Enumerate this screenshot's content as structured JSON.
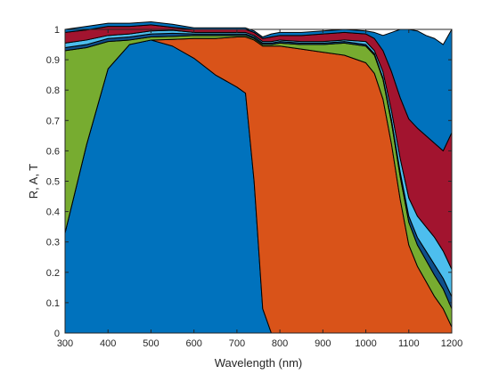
{
  "chart_data": {
    "type": "area",
    "stacked": true,
    "title": "",
    "xlabel": "Wavelength (nm)",
    "ylabel": "R, A, T",
    "xlim": [
      300,
      1200
    ],
    "ylim": [
      0,
      1
    ],
    "xticks": [
      300,
      400,
      500,
      600,
      700,
      800,
      900,
      1000,
      1100,
      1200
    ],
    "yticks": [
      0,
      0.1,
      0.2,
      0.3,
      0.4,
      0.5,
      0.6,
      0.7,
      0.8,
      0.9,
      1
    ],
    "ytick_labels": [
      "0",
      "0.1",
      "0.2",
      "0.3",
      "0.4",
      "0.5",
      "0.6",
      "0.7",
      "0.8",
      "0.9",
      "1"
    ],
    "grid": false,
    "legend": "none",
    "x": [
      300,
      350,
      400,
      450,
      500,
      550,
      600,
      650,
      700,
      720,
      740,
      760,
      780,
      800,
      850,
      900,
      950,
      1000,
      1020,
      1040,
      1060,
      1080,
      1100,
      1120,
      1140,
      1160,
      1180,
      1200
    ],
    "series": [
      {
        "color": "#0072bd",
        "values": [
          0.33,
          0.62,
          0.87,
          0.95,
          0.965,
          0.945,
          0.905,
          0.85,
          0.81,
          0.79,
          0.5,
          0.08,
          0.0,
          0.0,
          0.0,
          0.0,
          0.0,
          0.0,
          0.0,
          0.0,
          0.0,
          0.0,
          0.0,
          0.0,
          0.0,
          0.0,
          0.0,
          0.0
        ]
      },
      {
        "color": "#d95319",
        "values": [
          0.0,
          0.0,
          0.0,
          0.0,
          0.0,
          0.022,
          0.065,
          0.12,
          0.165,
          0.185,
          0.465,
          0.865,
          0.945,
          0.945,
          0.935,
          0.925,
          0.915,
          0.89,
          0.855,
          0.77,
          0.62,
          0.44,
          0.29,
          0.22,
          0.17,
          0.12,
          0.08,
          0.02
        ]
      },
      {
        "color": "#77ac30",
        "values": [
          0.6,
          0.32,
          0.09,
          0.015,
          0.01,
          0.01,
          0.01,
          0.01,
          0.005,
          0.005,
          0.005,
          0.005,
          0.005,
          0.01,
          0.015,
          0.025,
          0.04,
          0.055,
          0.06,
          0.065,
          0.07,
          0.075,
          0.075,
          0.07,
          0.07,
          0.07,
          0.065,
          0.06
        ]
      },
      {
        "color": "#0f4f8a",
        "values": [
          0.01,
          0.01,
          0.01,
          0.01,
          0.01,
          0.01,
          0.005,
          0.005,
          0.005,
          0.005,
          0.005,
          0.005,
          0.005,
          0.005,
          0.005,
          0.005,
          0.005,
          0.005,
          0.005,
          0.005,
          0.01,
          0.015,
          0.02,
          0.025,
          0.03,
          0.035,
          0.035,
          0.04
        ]
      },
      {
        "color": "#4dbeee",
        "values": [
          0.015,
          0.015,
          0.01,
          0.01,
          0.01,
          0.01,
          0.005,
          0.005,
          0.005,
          0.005,
          0.005,
          0.005,
          0.005,
          0.005,
          0.005,
          0.005,
          0.005,
          0.01,
          0.01,
          0.02,
          0.03,
          0.045,
          0.06,
          0.07,
          0.08,
          0.09,
          0.09,
          0.09
        ]
      },
      {
        "color": "#a2142f",
        "values": [
          0.035,
          0.033,
          0.03,
          0.025,
          0.02,
          0.01,
          0.01,
          0.01,
          0.01,
          0.01,
          0.01,
          0.01,
          0.015,
          0.015,
          0.02,
          0.025,
          0.025,
          0.025,
          0.04,
          0.07,
          0.13,
          0.2,
          0.26,
          0.29,
          0.3,
          0.31,
          0.33,
          0.45
        ]
      },
      {
        "color": "#0072bd",
        "values": [
          0.01,
          0.012,
          0.01,
          0.01,
          0.01,
          0.01,
          0.005,
          0.005,
          0.005,
          0.005,
          0.005,
          0.005,
          0.01,
          0.01,
          0.01,
          0.01,
          0.01,
          0.01,
          0.02,
          0.05,
          0.13,
          0.225,
          0.295,
          0.32,
          0.33,
          0.345,
          0.35,
          0.34
        ]
      }
    ]
  }
}
